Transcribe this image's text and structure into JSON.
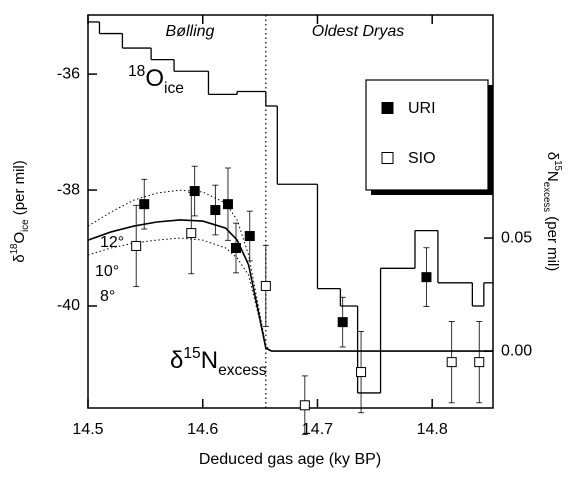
{
  "chart_data": {
    "type": "scatter",
    "xlabel": "Deduced gas age (ky BP)",
    "ylabel": [
      "δ",
      "18",
      "O",
      "ice",
      " (per mil)"
    ],
    "y2label": [
      "δ",
      "15",
      "N",
      "excess",
      " (per mil)"
    ],
    "xlim": [
      14.5,
      14.853
    ],
    "xticks": [
      14.5,
      14.6,
      14.7,
      14.8
    ],
    "ylim": [
      -41.76,
      -34.98
    ],
    "yticks": [
      -36,
      -38,
      -40
    ],
    "y2lim": [
      -0.0252,
      0.1487
    ],
    "y2ticks": [
      {
        "value": 0,
        "label": "0.00"
      },
      0.05
    ],
    "annotations": {
      "periods": [
        "Bølling",
        "Oldest Dryas"
      ],
      "divider_x": 14.655,
      "o18_label": [
        "18",
        "O",
        "ice"
      ],
      "n15_label": [
        "δ",
        "15",
        "N",
        "excess"
      ]
    },
    "step_series": {
      "color": "#000000",
      "x": [
        14.5,
        14.51,
        14.53,
        14.555,
        14.575,
        14.605,
        14.63,
        14.655,
        14.665,
        14.7,
        14.72,
        14.735,
        14.755,
        14.785,
        14.805,
        14.835,
        14.845
      ],
      "values": [
        -35.1,
        -35.3,
        -35.55,
        -35.75,
        -35.95,
        -36.35,
        -36.3,
        -36.55,
        -37.9,
        -39.7,
        -40.0,
        -41.5,
        -39.35,
        -38.7,
        -39.6,
        -40.0,
        -39.6
      ]
    },
    "model": {
      "axis": "y2",
      "x": [
        14.5,
        14.52,
        14.54,
        14.56,
        14.58,
        14.6,
        14.62,
        14.63,
        14.64,
        14.65,
        14.655,
        14.66,
        14.7,
        14.75,
        14.8,
        14.853
      ],
      "series": [
        {
          "name": "12°",
          "dashed": true,
          "values": [
            0.0553,
            0.0615,
            0.0668,
            0.0699,
            0.0712,
            0.0704,
            0.0655,
            0.058,
            0.0425,
            0.0159,
            0.0022,
            0,
            0,
            0,
            0,
            0
          ]
        },
        {
          "name": "10°",
          "dashed": false,
          "values": [
            0.0491,
            0.0527,
            0.0553,
            0.0571,
            0.058,
            0.0575,
            0.0544,
            0.0491,
            0.0381,
            0.0137,
            0.0013,
            0,
            0,
            0,
            0,
            0
          ]
        },
        {
          "name": "8°",
          "dashed": true,
          "values": [
            0.0425,
            0.0456,
            0.0478,
            0.0491,
            0.05,
            0.0491,
            0.0456,
            0.0412,
            0.0336,
            0.0128,
            0.0009,
            0,
            0,
            0,
            0,
            0
          ]
        }
      ]
    },
    "series": [
      {
        "name": "URI",
        "marker": "filled",
        "axis": "y2",
        "color": "#000000",
        "x": [
          14.549,
          14.593,
          14.611,
          14.622,
          14.629,
          14.641,
          14.722,
          14.795
        ],
        "values": [
          0.065,
          0.0708,
          0.0624,
          0.065,
          0.0456,
          0.0509,
          0.0128,
          0.0327
        ],
        "errors": [
          0.011,
          0.011,
          0.011,
          0.016,
          0.011,
          0.011,
          0.011,
          0.013
        ]
      },
      {
        "name": "SIO",
        "marker": "open",
        "axis": "y2",
        "color": "#000000",
        "x": [
          14.542,
          14.59,
          14.655,
          14.689,
          14.738,
          14.817,
          14.841
        ],
        "values": [
          0.0465,
          0.0522,
          0.0288,
          -0.024,
          -0.0093,
          -0.0049,
          -0.0049
        ],
        "errors": [
          0.018,
          0.018,
          0.018,
          0.013,
          0.018,
          0.018,
          0.018
        ]
      }
    ],
    "legend": "upper right"
  }
}
